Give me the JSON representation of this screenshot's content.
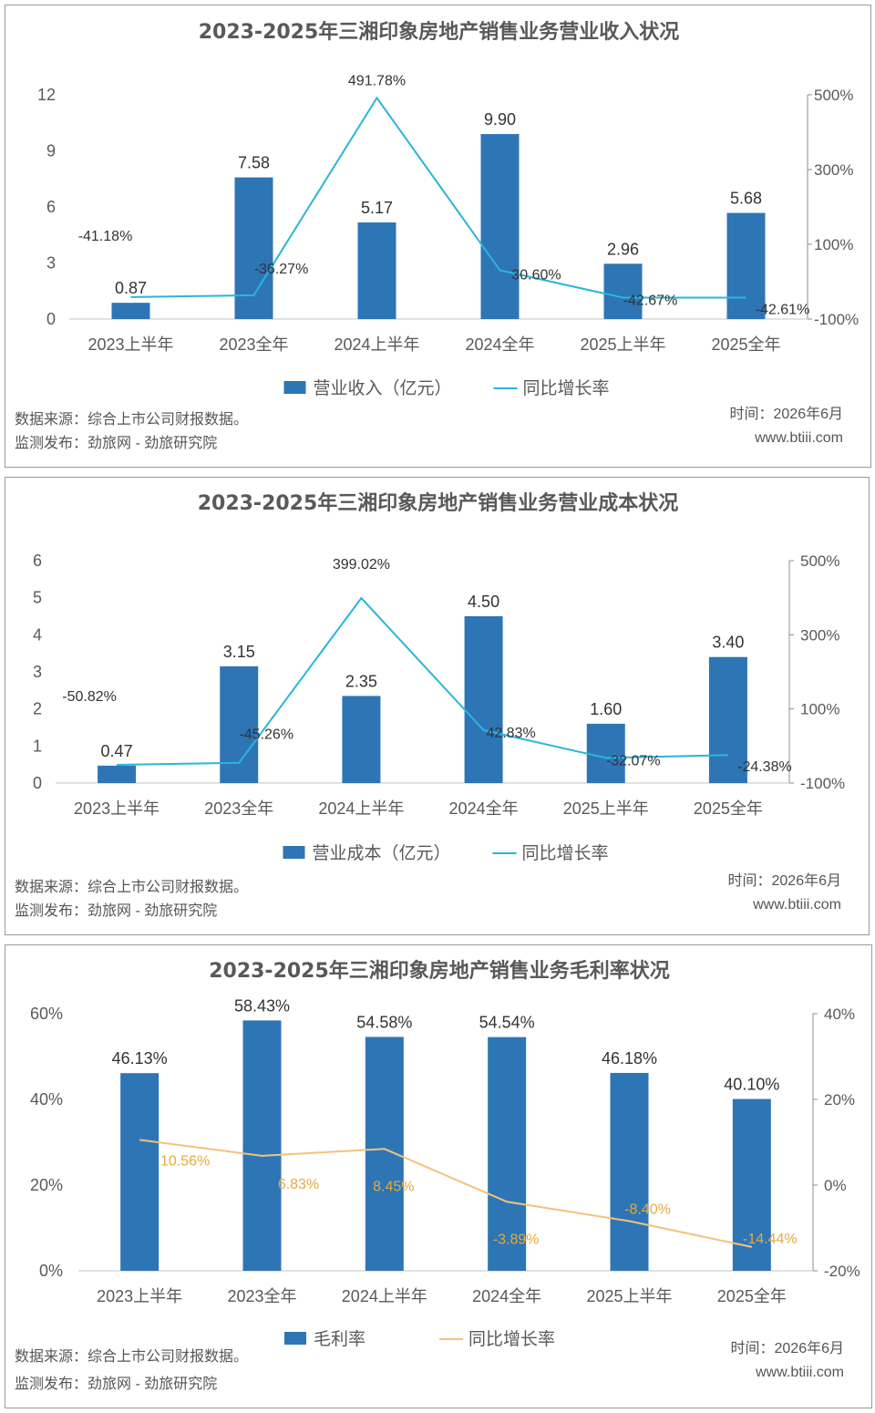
{
  "colors": {
    "bar": "#2e75b6",
    "line_blue": "#29b6d8",
    "line_orange": "#f2c27a",
    "axis_text": "#595959",
    "title": "#595959",
    "orange_label": "#e8a93a"
  },
  "chart_data": [
    {
      "type": "bar",
      "title": "2023-2025年三湘印象房地产销售业务营业收入状况",
      "categories": [
        "2023上半年",
        "2023全年",
        "2024上半年",
        "2024全年",
        "2025上半年",
        "2025全年"
      ],
      "series": [
        {
          "name": "营业收入（亿元）",
          "type": "bar",
          "axis": "left",
          "values": [
            0.87,
            7.58,
            5.17,
            9.9,
            2.96,
            5.68
          ],
          "labels": [
            "0.87",
            "7.58",
            "5.17",
            "9.90",
            "2.96",
            "5.68"
          ]
        },
        {
          "name": "同比增长率",
          "type": "line",
          "axis": "right",
          "values": [
            -41.18,
            -36.27,
            491.78,
            30.6,
            -42.67,
            -42.61
          ],
          "labels": [
            "-41.18%",
            "-36.27%",
            "491.78%",
            "30.60%",
            "-42.67%",
            "-42.61%"
          ]
        }
      ],
      "ylim_left": [
        0,
        12
      ],
      "yticks_left": [
        "0",
        "3",
        "6",
        "9",
        "12"
      ],
      "ylim_right": [
        -100,
        500
      ],
      "yticks_right": [
        "-100%",
        "100%",
        "300%",
        "500%"
      ],
      "legend": "bottom",
      "source": "数据来源：综合上市公司财报数据。",
      "publisher": "监测发布：劲旅网 - 劲旅研究院",
      "date": "时间：2026年6月",
      "site": "www.btiii.com"
    },
    {
      "type": "bar",
      "title": "2023-2025年三湘印象房地产销售业务营业成本状况",
      "categories": [
        "2023上半年",
        "2023全年",
        "2024上半年",
        "2024全年",
        "2025上半年",
        "2025全年"
      ],
      "series": [
        {
          "name": "营业成本（亿元）",
          "type": "bar",
          "axis": "left",
          "values": [
            0.47,
            3.15,
            2.35,
            4.5,
            1.6,
            3.4
          ],
          "labels": [
            "0.47",
            "3.15",
            "2.35",
            "4.50",
            "1.60",
            "3.40"
          ]
        },
        {
          "name": "同比增长率",
          "type": "line",
          "axis": "right",
          "values": [
            -50.82,
            -45.26,
            399.02,
            42.83,
            -32.07,
            -24.38
          ],
          "labels": [
            "-50.82%",
            "-45.26%",
            "399.02%",
            "42.83%",
            "-32.07%",
            "-24.38%"
          ]
        }
      ],
      "ylim_left": [
        0,
        6
      ],
      "yticks_left": [
        "0",
        "1",
        "2",
        "3",
        "4",
        "5",
        "6"
      ],
      "ylim_right": [
        -100,
        500
      ],
      "yticks_right": [
        "-100%",
        "100%",
        "300%",
        "500%"
      ],
      "legend": "bottom",
      "source": "数据来源：综合上市公司财报数据。",
      "publisher": "监测发布：劲旅网 - 劲旅研究院",
      "date": "时间：2026年6月",
      "site": "www.btiii.com"
    },
    {
      "type": "bar",
      "title": "2023-2025年三湘印象房地产销售业务毛利率状况",
      "categories": [
        "2023上半年",
        "2023全年",
        "2024上半年",
        "2024全年",
        "2025上半年",
        "2025全年"
      ],
      "series": [
        {
          "name": "毛利率",
          "type": "bar",
          "axis": "left",
          "values": [
            46.13,
            58.43,
            54.58,
            54.54,
            46.18,
            40.1
          ],
          "labels": [
            "46.13%",
            "58.43%",
            "54.58%",
            "54.54%",
            "46.18%",
            "40.10%"
          ]
        },
        {
          "name": "同比增长率",
          "type": "line",
          "axis": "right",
          "values": [
            10.56,
            6.83,
            8.45,
            -3.89,
            -8.4,
            -14.44
          ],
          "labels": [
            "10.56%",
            "6.83%",
            "8.45%",
            "-3.89%",
            "-8.40%",
            "-14.44%"
          ]
        }
      ],
      "ylim_left": [
        0,
        60
      ],
      "yticks_left": [
        "0%",
        "20%",
        "40%",
        "60%"
      ],
      "ylim_right": [
        -20,
        40
      ],
      "yticks_right": [
        "-20%",
        "0%",
        "20%",
        "40%"
      ],
      "legend": "bottom",
      "source": "数据来源：综合上市公司财报数据。",
      "publisher": "监测发布：劲旅网 - 劲旅研究院",
      "date": "时间：2026年6月",
      "site": "www.btiii.com"
    }
  ]
}
